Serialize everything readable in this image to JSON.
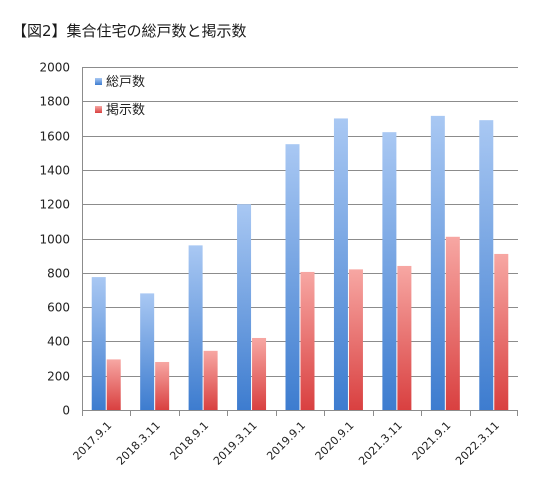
{
  "chart_data": {
    "type": "bar",
    "title": "【図2】集合住宅の総戸数と掲示数",
    "categories": [
      "2017.9.1",
      "2018.3.11",
      "2018.9.1",
      "2019.3.11",
      "2019.9.1",
      "2020.9.1",
      "2021.3.11",
      "2021.9.1",
      "2022.3.11"
    ],
    "series": [
      {
        "name": "総戸数",
        "values": [
          775,
          680,
          960,
          1200,
          1550,
          1700,
          1620,
          1715,
          1690
        ],
        "color": "#5b93dd"
      },
      {
        "name": "掲示数",
        "values": [
          295,
          280,
          345,
          420,
          805,
          820,
          840,
          1010,
          910
        ],
        "color": "#e45f5f"
      }
    ],
    "ylim": [
      0,
      2000
    ],
    "yticks": [
      0,
      200,
      400,
      600,
      800,
      1000,
      1200,
      1400,
      1600,
      1800,
      2000
    ],
    "grid": true,
    "legend": "top-left"
  }
}
